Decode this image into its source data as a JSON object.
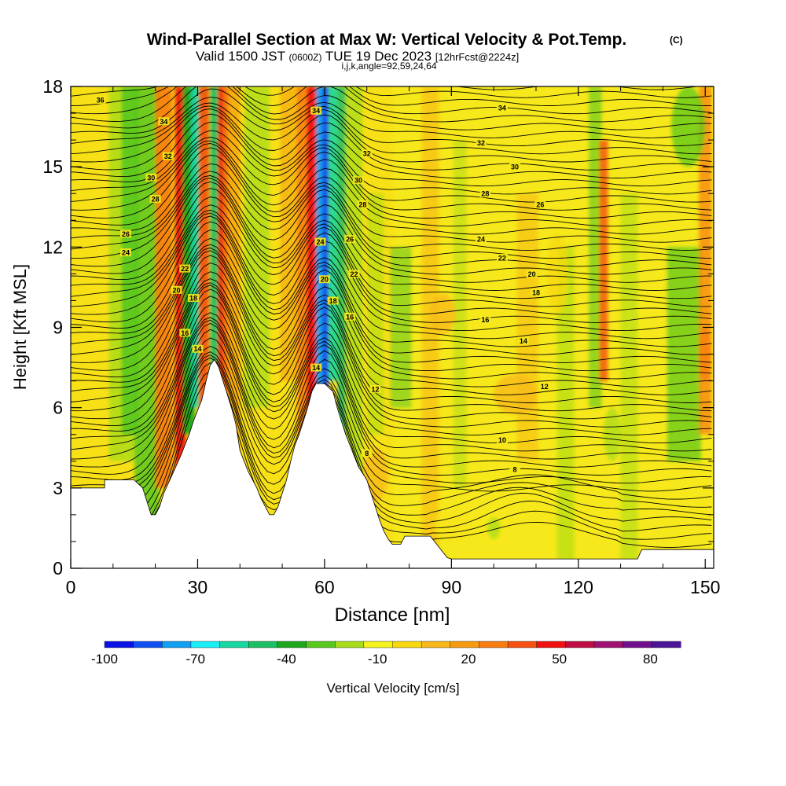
{
  "header": {
    "title": "Wind-Parallel Section at Max W: Vertical Velocity & Pot.Temp.",
    "copyright": "(C)",
    "valid_prefix": "Valid 1500 JST",
    "valid_utc": "(0600Z)",
    "valid_date": "TUE 19 Dec 2023",
    "forecast": "[12hrFcst@2224z]",
    "indices": "i,j,k,angle=92,59,24,64"
  },
  "colorbar": {
    "label": "Vertical Velocity [cm/s]",
    "tick_labels": [
      "-100",
      "-70",
      "-40",
      "-10",
      "20",
      "50",
      "80"
    ],
    "colors": [
      "#0a12e6",
      "#0f4ff2",
      "#129ff4",
      "#19f0f6",
      "#14d8a0",
      "#1cc064",
      "#1ea81e",
      "#59c81e",
      "#a8dc18",
      "#f4f41c",
      "#f8d80c",
      "#f8b818",
      "#f89a10",
      "#f87c10",
      "#f85010",
      "#f01010",
      "#c00c40",
      "#a01070",
      "#70108c",
      "#4c1498"
    ]
  },
  "chart_data": {
    "type": "heatmap",
    "title": "Wind-Parallel Section at Max W: Vertical Velocity & Pot.Temp.",
    "xlabel": "Distance [nm]",
    "ylabel": "Height [Kft MSL]",
    "xlim": [
      0,
      152
    ],
    "ylim": [
      0,
      18
    ],
    "x_ticks": [
      0,
      30,
      60,
      90,
      120,
      150
    ],
    "y_ticks": [
      0,
      3,
      6,
      9,
      12,
      15,
      18
    ],
    "x_tick_labels": [
      "0",
      "30",
      "60",
      "90",
      "120",
      "150"
    ],
    "y_tick_labels": [
      "0",
      "3",
      "6",
      "9",
      "12",
      "15",
      "18"
    ],
    "fill_variable": "Vertical Velocity [cm/s]",
    "fill_scale": [
      -100,
      90
    ],
    "contour_variable": "Potential Temperature",
    "grid": false,
    "terrain_kft": {
      "x": [
        0,
        8,
        8,
        15,
        17,
        18,
        19,
        20,
        21,
        22,
        24,
        26,
        28,
        29,
        31,
        32,
        33,
        34,
        35,
        36,
        37,
        38,
        39,
        40,
        41,
        42,
        43,
        44,
        45,
        46,
        47,
        48,
        49,
        50,
        51,
        52,
        53,
        54,
        55,
        56,
        57,
        58,
        60,
        62,
        63,
        64,
        65,
        66,
        67,
        68,
        70,
        71,
        72,
        73,
        74,
        75,
        76,
        77,
        78,
        79,
        80,
        85,
        86,
        87,
        88,
        89,
        90,
        134,
        135,
        136,
        152
      ],
      "y": [
        3.0,
        3.0,
        3.3,
        3.3,
        3.0,
        2.5,
        2.0,
        2.0,
        2.3,
        2.8,
        3.5,
        4.2,
        5.0,
        5.5,
        6.3,
        7.0,
        7.6,
        7.8,
        7.5,
        7.0,
        6.5,
        6.0,
        5.4,
        4.4,
        4.0,
        3.6,
        3.3,
        3.0,
        2.6,
        2.3,
        2.0,
        2.0,
        2.3,
        2.8,
        3.3,
        4.0,
        4.6,
        5.0,
        5.5,
        6.0,
        6.6,
        6.9,
        6.9,
        6.6,
        6.0,
        5.5,
        5.0,
        4.6,
        4.2,
        3.8,
        3.3,
        2.8,
        2.3,
        1.8,
        1.4,
        1.1,
        0.9,
        0.9,
        0.9,
        1.2,
        1.2,
        1.2,
        1.0,
        0.8,
        0.6,
        0.4,
        0.35,
        0.35,
        0.7,
        0.7,
        0.7
      ]
    },
    "contour_labels": [
      {
        "x": 7,
        "y": 17.5,
        "text": "36"
      },
      {
        "x": 22,
        "y": 16.7,
        "text": "34"
      },
      {
        "x": 58,
        "y": 17.1,
        "text": "34"
      },
      {
        "x": 102,
        "y": 17.2,
        "text": "34"
      },
      {
        "x": 23,
        "y": 15.4,
        "text": "32"
      },
      {
        "x": 70,
        "y": 15.5,
        "text": "32"
      },
      {
        "x": 97,
        "y": 15.9,
        "text": "32"
      },
      {
        "x": 19,
        "y": 14.6,
        "text": "30"
      },
      {
        "x": 68,
        "y": 14.5,
        "text": "30"
      },
      {
        "x": 105,
        "y": 15.0,
        "text": "30"
      },
      {
        "x": 20,
        "y": 13.8,
        "text": "28"
      },
      {
        "x": 69,
        "y": 13.6,
        "text": "28"
      },
      {
        "x": 98,
        "y": 14.0,
        "text": "28"
      },
      {
        "x": 111,
        "y": 13.6,
        "text": "26"
      },
      {
        "x": 13,
        "y": 12.5,
        "text": "26"
      },
      {
        "x": 66,
        "y": 12.3,
        "text": "26"
      },
      {
        "x": 59,
        "y": 12.2,
        "text": "24"
      },
      {
        "x": 13,
        "y": 11.8,
        "text": "24"
      },
      {
        "x": 97,
        "y": 12.3,
        "text": "24"
      },
      {
        "x": 27,
        "y": 11.2,
        "text": "22"
      },
      {
        "x": 67,
        "y": 11.0,
        "text": "22"
      },
      {
        "x": 102,
        "y": 11.6,
        "text": "22"
      },
      {
        "x": 25,
        "y": 10.4,
        "text": "20"
      },
      {
        "x": 60,
        "y": 10.8,
        "text": "20"
      },
      {
        "x": 109,
        "y": 11.0,
        "text": "20"
      },
      {
        "x": 29,
        "y": 10.1,
        "text": "18"
      },
      {
        "x": 62,
        "y": 10.0,
        "text": "18"
      },
      {
        "x": 110,
        "y": 10.3,
        "text": "18"
      },
      {
        "x": 27,
        "y": 8.8,
        "text": "16"
      },
      {
        "x": 66,
        "y": 9.4,
        "text": "16"
      },
      {
        "x": 98,
        "y": 9.3,
        "text": "16"
      },
      {
        "x": 30,
        "y": 8.2,
        "text": "14"
      },
      {
        "x": 58,
        "y": 7.5,
        "text": "14"
      },
      {
        "x": 107,
        "y": 8.5,
        "text": "14"
      },
      {
        "x": 72,
        "y": 6.7,
        "text": "12"
      },
      {
        "x": 112,
        "y": 6.8,
        "text": "12"
      },
      {
        "x": 102,
        "y": 4.8,
        "text": "10"
      },
      {
        "x": 70,
        "y": 4.3,
        "text": "8"
      },
      {
        "x": 105,
        "y": 3.7,
        "text": "8"
      }
    ]
  }
}
